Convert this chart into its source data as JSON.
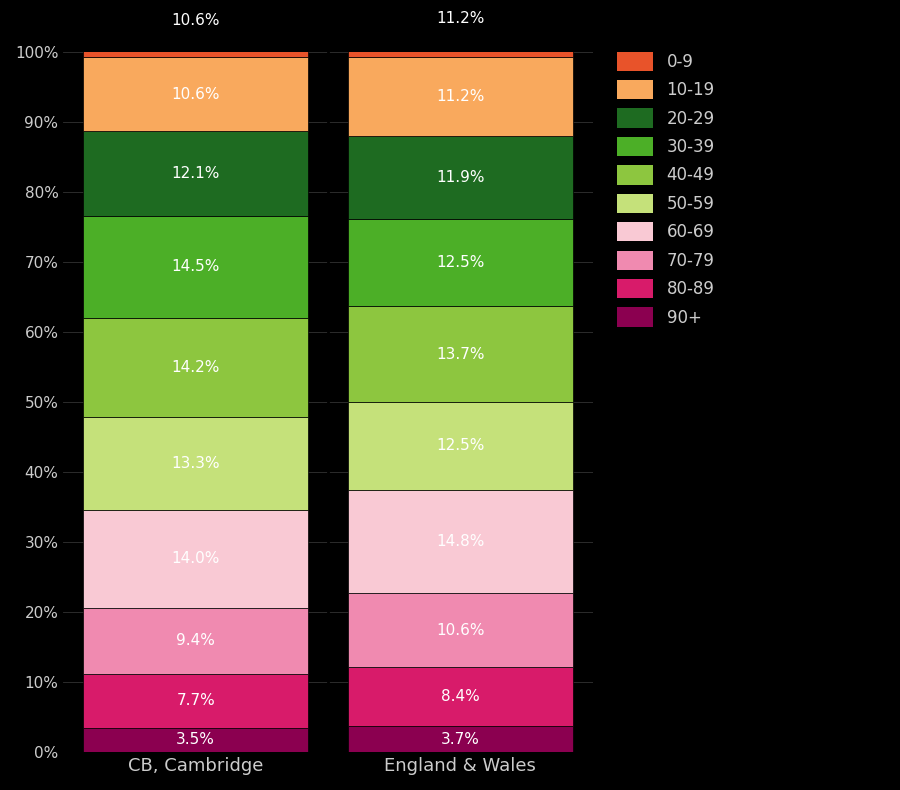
{
  "categories": [
    "CB, Cambridge",
    "England & Wales"
  ],
  "age_order_bottom_to_top": [
    "90+",
    "80-89",
    "70-79",
    "60-69",
    "50-59",
    "40-49",
    "30-39",
    "20-29",
    "10-19",
    "0-9"
  ],
  "values": {
    "CB, Cambridge": [
      3.5,
      7.7,
      9.4,
      14.0,
      13.3,
      14.2,
      14.5,
      12.1,
      10.6,
      10.6
    ],
    "England & Wales": [
      3.7,
      8.4,
      10.6,
      14.8,
      12.5,
      13.7,
      12.5,
      11.9,
      11.2,
      11.2
    ]
  },
  "colors": {
    "0-9": "#E8532A",
    "10-19": "#F9A95D",
    "20-29": "#1E6B21",
    "30-39": "#4CAF27",
    "40-49": "#8DC63F",
    "50-59": "#C5E17A",
    "60-69": "#F9C9D4",
    "70-79": "#F08AB0",
    "80-89": "#D81B6A",
    "90+": "#8B0050"
  },
  "background_color": "#000000",
  "text_color": "#cccccc",
  "bar_positions": [
    0,
    1
  ],
  "bar_width": 0.85,
  "xlim": [
    -0.5,
    1.5
  ],
  "ylim": [
    0,
    100
  ],
  "yticks": [
    0,
    10,
    20,
    30,
    40,
    50,
    60,
    70,
    80,
    90,
    100
  ],
  "label_fontsize": 11,
  "tick_fontsize": 11,
  "xtick_fontsize": 13,
  "legend_fontsize": 12
}
